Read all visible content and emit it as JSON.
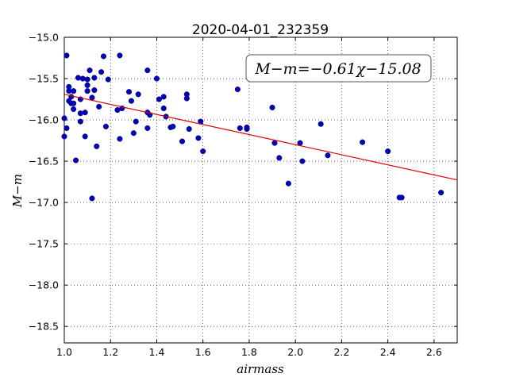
{
  "chart_data": {
    "type": "scatter",
    "title": "2020-04-01_232359",
    "xlabel": "airmass",
    "ylabel": "M−m",
    "xlim": [
      1.0,
      2.7
    ],
    "ylim": [
      -15.0,
      -18.7
    ],
    "y_inverted": true,
    "grid": true,
    "grid_style": "dotted",
    "xticks": [
      1.0,
      1.2,
      1.4,
      1.6,
      1.8,
      2.0,
      2.2,
      2.4,
      2.6
    ],
    "xtick_labels": [
      "1.0",
      "1.2",
      "1.4",
      "1.6",
      "1.8",
      "2.0",
      "2.2",
      "2.4",
      "2.6"
    ],
    "yticks": [
      -15.0,
      -15.5,
      -16.0,
      -16.5,
      -17.0,
      -17.5,
      -18.0,
      -18.5
    ],
    "ytick_labels": [
      "−15.0",
      "−15.5",
      "−16.0",
      "−16.5",
      "−17.0",
      "−17.5",
      "−18.0",
      "−18.5"
    ],
    "annotation": "M−m=−0.61χ−15.08",
    "fit": {
      "slope": -0.61,
      "intercept": -15.08,
      "color": "#e00000"
    },
    "marker_color": "#0000bb",
    "points": [
      {
        "x": 1.0,
        "y": -15.98
      },
      {
        "x": 1.0,
        "y": -16.2
      },
      {
        "x": 1.01,
        "y": -16.1
      },
      {
        "x": 1.01,
        "y": -15.22
      },
      {
        "x": 1.02,
        "y": -15.65
      },
      {
        "x": 1.02,
        "y": -15.6
      },
      {
        "x": 1.02,
        "y": -15.77
      },
      {
        "x": 1.03,
        "y": -15.72
      },
      {
        "x": 1.03,
        "y": -15.8
      },
      {
        "x": 1.04,
        "y": -15.65
      },
      {
        "x": 1.04,
        "y": -15.8
      },
      {
        "x": 1.04,
        "y": -15.87
      },
      {
        "x": 1.05,
        "y": -16.49
      },
      {
        "x": 1.06,
        "y": -15.49
      },
      {
        "x": 1.07,
        "y": -15.75
      },
      {
        "x": 1.07,
        "y": -15.92
      },
      {
        "x": 1.07,
        "y": -16.02
      },
      {
        "x": 1.08,
        "y": -15.5
      },
      {
        "x": 1.09,
        "y": -15.91
      },
      {
        "x": 1.09,
        "y": -16.2
      },
      {
        "x": 1.1,
        "y": -15.51
      },
      {
        "x": 1.1,
        "y": -15.58
      },
      {
        "x": 1.1,
        "y": -15.65
      },
      {
        "x": 1.11,
        "y": -15.4
      },
      {
        "x": 1.12,
        "y": -16.95
      },
      {
        "x": 1.12,
        "y": -15.73
      },
      {
        "x": 1.13,
        "y": -15.49
      },
      {
        "x": 1.13,
        "y": -15.64
      },
      {
        "x": 1.14,
        "y": -16.32
      },
      {
        "x": 1.15,
        "y": -15.84
      },
      {
        "x": 1.16,
        "y": -15.42
      },
      {
        "x": 1.17,
        "y": -15.23
      },
      {
        "x": 1.18,
        "y": -16.08
      },
      {
        "x": 1.19,
        "y": -15.51
      },
      {
        "x": 1.23,
        "y": -15.88
      },
      {
        "x": 1.24,
        "y": -15.22
      },
      {
        "x": 1.24,
        "y": -16.23
      },
      {
        "x": 1.25,
        "y": -15.86
      },
      {
        "x": 1.28,
        "y": -15.66
      },
      {
        "x": 1.29,
        "y": -15.77
      },
      {
        "x": 1.3,
        "y": -16.16
      },
      {
        "x": 1.31,
        "y": -16.02
      },
      {
        "x": 1.32,
        "y": -15.69
      },
      {
        "x": 1.36,
        "y": -15.4
      },
      {
        "x": 1.36,
        "y": -16.1
      },
      {
        "x": 1.36,
        "y": -15.91
      },
      {
        "x": 1.37,
        "y": -15.94
      },
      {
        "x": 1.4,
        "y": -15.5
      },
      {
        "x": 1.41,
        "y": -15.75
      },
      {
        "x": 1.43,
        "y": -15.72
      },
      {
        "x": 1.43,
        "y": -15.86
      },
      {
        "x": 1.44,
        "y": -15.96
      },
      {
        "x": 1.46,
        "y": -16.09
      },
      {
        "x": 1.47,
        "y": -16.08
      },
      {
        "x": 1.51,
        "y": -16.26
      },
      {
        "x": 1.53,
        "y": -15.69
      },
      {
        "x": 1.53,
        "y": -15.74
      },
      {
        "x": 1.54,
        "y": -16.11
      },
      {
        "x": 1.58,
        "y": -16.22
      },
      {
        "x": 1.59,
        "y": -16.02
      },
      {
        "x": 1.6,
        "y": -16.38
      },
      {
        "x": 1.75,
        "y": -15.63
      },
      {
        "x": 1.76,
        "y": -16.1
      },
      {
        "x": 1.79,
        "y": -16.09
      },
      {
        "x": 1.79,
        "y": -16.11
      },
      {
        "x": 1.9,
        "y": -15.85
      },
      {
        "x": 1.91,
        "y": -16.28
      },
      {
        "x": 1.93,
        "y": -16.46
      },
      {
        "x": 1.97,
        "y": -16.77
      },
      {
        "x": 2.02,
        "y": -16.28
      },
      {
        "x": 2.03,
        "y": -16.5
      },
      {
        "x": 2.11,
        "y": -16.05
      },
      {
        "x": 2.14,
        "y": -16.43
      },
      {
        "x": 2.29,
        "y": -16.27
      },
      {
        "x": 2.4,
        "y": -16.38
      },
      {
        "x": 2.45,
        "y": -16.94
      },
      {
        "x": 2.46,
        "y": -16.94
      },
      {
        "x": 2.63,
        "y": -16.88
      }
    ]
  }
}
